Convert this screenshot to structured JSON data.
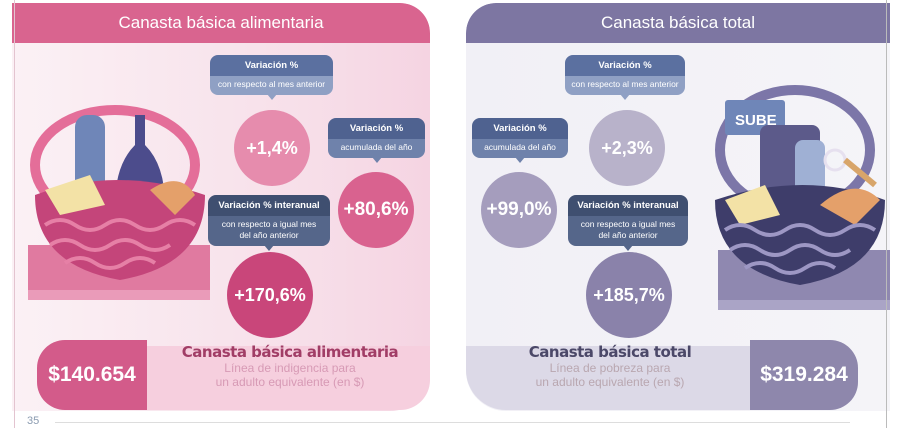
{
  "left": {
    "title": "Canasta básica alimentaria",
    "color": "#d9648f",
    "monthly": {
      "title": "Variación %",
      "subtitle": "con respecto al mes anterior",
      "value": "+1,4%"
    },
    "accumulated": {
      "title": "Variación %",
      "subtitle": "acumulada del año",
      "value": "+80,6%"
    },
    "yearly": {
      "title": "Variación % interanual",
      "subtitle": "con respecto a igual mes del año anterior",
      "value": "+170,6%"
    },
    "price": "$140.654",
    "summary_title": "Canasta básica alimentaria",
    "summary_line1": "Línea de indigencia para",
    "summary_line2": "un adulto equivalente (en $)"
  },
  "right": {
    "title": "Canasta básica total",
    "color": "#7d76a2",
    "monthly": {
      "title": "Variación %",
      "subtitle": "con respecto al mes anterior",
      "value": "+2,3%"
    },
    "accumulated": {
      "title": "Variación %",
      "subtitle": "acumulada del año",
      "value": "+99,0%"
    },
    "yearly": {
      "title": "Variación % interanual",
      "subtitle": "con respecto a igual mes del año anterior",
      "value": "+185,7%"
    },
    "price": "$319.284",
    "summary_title": "Canasta básica total",
    "summary_line1": "Línea de pobreza para",
    "summary_line2": "un adulto equivalente (en $)",
    "card_label": "SUBE"
  },
  "page_number": "35"
}
